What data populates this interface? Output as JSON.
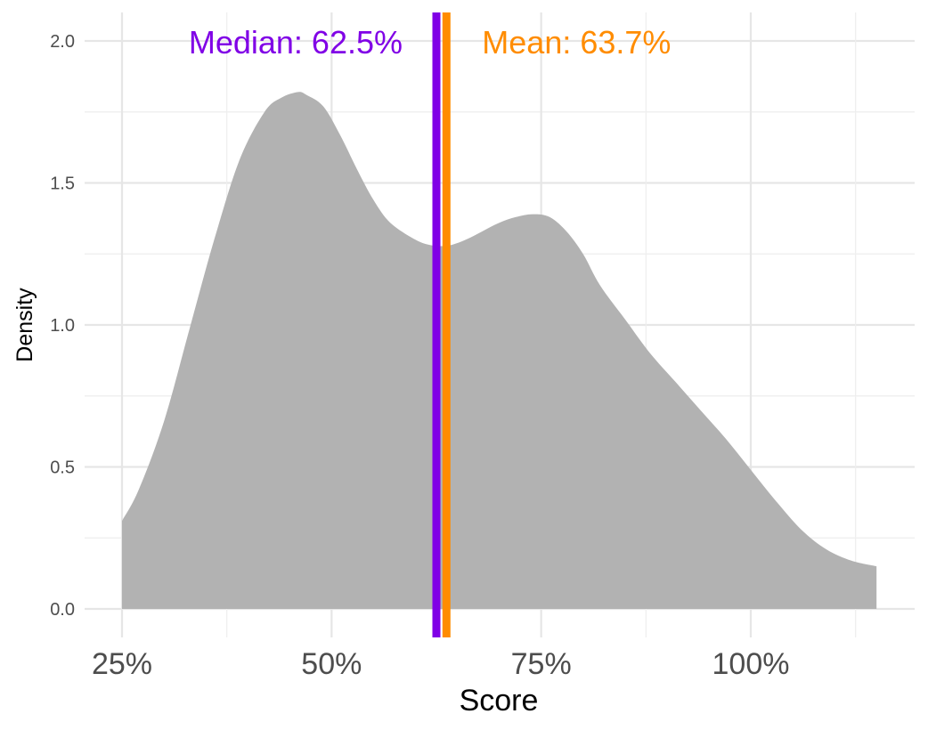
{
  "chart_data": {
    "type": "area",
    "xlabel": "Score",
    "ylabel": "Density",
    "xlim": [
      0.2,
      1.17
    ],
    "ylim": [
      -0.09,
      2.1
    ],
    "x_ticks": [
      0.25,
      0.5,
      0.75,
      1.0
    ],
    "x_tick_labels": [
      "25%",
      "50%",
      "75%",
      "100%"
    ],
    "y_ticks": [
      0.0,
      0.5,
      1.0,
      1.5,
      2.0
    ],
    "y_tick_labels": [
      "0.0",
      "0.5",
      "1.0",
      "1.5",
      "2.0"
    ],
    "grid": true,
    "fill_color": "#b2b2b2",
    "density_x": [
      0.25,
      0.27,
      0.3,
      0.33,
      0.36,
      0.39,
      0.42,
      0.44,
      0.46,
      0.47,
      0.49,
      0.51,
      0.53,
      0.55,
      0.57,
      0.6,
      0.62,
      0.64,
      0.66,
      0.68,
      0.7,
      0.72,
      0.74,
      0.76,
      0.78,
      0.8,
      0.82,
      0.85,
      0.88,
      0.91,
      0.94,
      0.97,
      1.0,
      1.03,
      1.06,
      1.09,
      1.12,
      1.15
    ],
    "density_y": [
      0.31,
      0.42,
      0.66,
      0.98,
      1.3,
      1.58,
      1.75,
      1.8,
      1.82,
      1.81,
      1.77,
      1.67,
      1.55,
      1.44,
      1.36,
      1.3,
      1.28,
      1.28,
      1.3,
      1.33,
      1.36,
      1.38,
      1.39,
      1.38,
      1.33,
      1.25,
      1.14,
      1.02,
      0.9,
      0.8,
      0.7,
      0.6,
      0.49,
      0.38,
      0.28,
      0.21,
      0.17,
      0.15
    ],
    "reference_lines": [
      {
        "label": "Median: 62.5%",
        "value": 0.625,
        "color": "#8000e6"
      },
      {
        "label": "Mean: 63.7%",
        "value": 0.637,
        "color": "#ff8c00"
      }
    ]
  }
}
